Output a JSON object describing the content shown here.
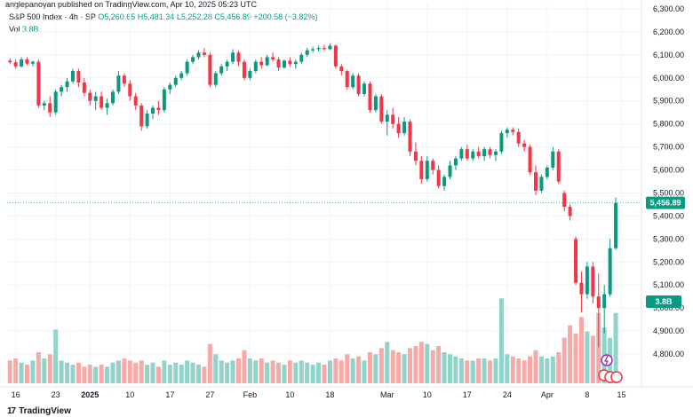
{
  "header": {
    "attribution": "anglepanoyan published on TradingView.com, Apr 10, 2025 05:23 UTC",
    "symbol": "S&P 500 Index · 4h · SP",
    "ohlc": "O5,260.65 H5,481.34 L5,252.28 C5,456.89 +200.58 (+3.82%)",
    "vol_label": "Vol",
    "vol_value": "3.8B"
  },
  "brand": {
    "logo": "17",
    "name": "TradingView"
  },
  "colors": {
    "up": "#089981",
    "down": "#f23645",
    "up_vol": "#8fd3cb",
    "down_vol": "#f7a9a7",
    "grid": "#f0f3fa"
  },
  "chart_data": {
    "type": "candlestick",
    "ylim": [
      4750,
      6300
    ],
    "y_ticks": [
      {
        "value": 6300,
        "label": "6,300.00"
      },
      {
        "value": 6200,
        "label": "6,200.00"
      },
      {
        "value": 6100,
        "label": "6,100.00"
      },
      {
        "value": 6000,
        "label": "6,000.00"
      },
      {
        "value": 5900,
        "label": "5,900.00"
      },
      {
        "value": 5800,
        "label": "5,800.00"
      },
      {
        "value": 5700,
        "label": "5,700.00"
      },
      {
        "value": 5600,
        "label": "5,600.00"
      },
      {
        "value": 5500,
        "label": "5,500.00"
      },
      {
        "value": 5400,
        "label": "5,400.00"
      },
      {
        "value": 5300,
        "label": "5,300.00"
      },
      {
        "value": 5200,
        "label": "5,200.00"
      },
      {
        "value": 5100,
        "label": "5,100.00"
      },
      {
        "value": 5000,
        "label": "5,000.00"
      },
      {
        "value": 4900,
        "label": "4,900.00"
      },
      {
        "value": 4800,
        "label": "4,800.00"
      }
    ],
    "x_ticks": [
      {
        "label": "16",
        "index": 1
      },
      {
        "label": "23",
        "index": 8
      },
      {
        "label": "2025",
        "index": 14,
        "bold": true
      },
      {
        "label": "10",
        "index": 21
      },
      {
        "label": "17",
        "index": 28
      },
      {
        "label": "27",
        "index": 35
      },
      {
        "label": "Feb",
        "index": 42
      },
      {
        "label": "10",
        "index": 49
      },
      {
        "label": "18",
        "index": 56
      },
      {
        "label": "Mar",
        "index": 66
      },
      {
        "label": "10",
        "index": 73
      },
      {
        "label": "17",
        "index": 80
      },
      {
        "label": "24",
        "index": 87
      },
      {
        "label": "Apr",
        "index": 94
      },
      {
        "label": "8",
        "index": 101
      },
      {
        "label": "15",
        "index": 107
      }
    ],
    "price_label": "5,456.89",
    "vol_label": "3.8B",
    "last_price": 5456.89,
    "candles": [
      {
        "o": 6075,
        "h": 6085,
        "l": 6060,
        "c": 6068,
        "v": 0.55
      },
      {
        "o": 6068,
        "h": 6080,
        "l": 6040,
        "c": 6050,
        "v": 0.6
      },
      {
        "o": 6050,
        "h": 6090,
        "l": 6045,
        "c": 6080,
        "v": 0.5
      },
      {
        "o": 6080,
        "h": 6090,
        "l": 6055,
        "c": 6062,
        "v": 0.45
      },
      {
        "o": 6062,
        "h": 6075,
        "l": 6050,
        "c": 6070,
        "v": 0.55
      },
      {
        "o": 6070,
        "h": 6080,
        "l": 5870,
        "c": 5880,
        "v": 0.75
      },
      {
        "o": 5880,
        "h": 5900,
        "l": 5860,
        "c": 5890,
        "v": 0.6
      },
      {
        "o": 5890,
        "h": 5920,
        "l": 5830,
        "c": 5850,
        "v": 0.7
      },
      {
        "o": 5850,
        "h": 5950,
        "l": 5840,
        "c": 5940,
        "v": 1.3
      },
      {
        "o": 5940,
        "h": 5970,
        "l": 5920,
        "c": 5960,
        "v": 0.55
      },
      {
        "o": 5960,
        "h": 6000,
        "l": 5940,
        "c": 5985,
        "v": 0.5
      },
      {
        "o": 5985,
        "h": 6040,
        "l": 5975,
        "c": 6030,
        "v": 0.45
      },
      {
        "o": 6030,
        "h": 6040,
        "l": 5960,
        "c": 5980,
        "v": 0.5
      },
      {
        "o": 5980,
        "h": 6000,
        "l": 5920,
        "c": 5935,
        "v": 0.4
      },
      {
        "o": 5935,
        "h": 5950,
        "l": 5880,
        "c": 5900,
        "v": 0.45
      },
      {
        "o": 5900,
        "h": 5940,
        "l": 5860,
        "c": 5920,
        "v": 0.4
      },
      {
        "o": 5920,
        "h": 5940,
        "l": 5860,
        "c": 5870,
        "v": 0.45
      },
      {
        "o": 5870,
        "h": 5910,
        "l": 5840,
        "c": 5890,
        "v": 0.4
      },
      {
        "o": 5890,
        "h": 5950,
        "l": 5880,
        "c": 5940,
        "v": 0.5
      },
      {
        "o": 5940,
        "h": 6030,
        "l": 5930,
        "c": 6010,
        "v": 0.55
      },
      {
        "o": 6010,
        "h": 6020,
        "l": 5960,
        "c": 5975,
        "v": 0.6
      },
      {
        "o": 5975,
        "h": 5990,
        "l": 5900,
        "c": 5920,
        "v": 0.55
      },
      {
        "o": 5920,
        "h": 5935,
        "l": 5860,
        "c": 5880,
        "v": 0.5
      },
      {
        "o": 5880,
        "h": 5890,
        "l": 5770,
        "c": 5790,
        "v": 0.55
      },
      {
        "o": 5790,
        "h": 5860,
        "l": 5780,
        "c": 5845,
        "v": 0.45
      },
      {
        "o": 5845,
        "h": 5880,
        "l": 5820,
        "c": 5870,
        "v": 0.5
      },
      {
        "o": 5870,
        "h": 5900,
        "l": 5840,
        "c": 5860,
        "v": 0.4
      },
      {
        "o": 5860,
        "h": 5960,
        "l": 5850,
        "c": 5950,
        "v": 0.55
      },
      {
        "o": 5950,
        "h": 5980,
        "l": 5930,
        "c": 5970,
        "v": 0.45
      },
      {
        "o": 5970,
        "h": 6010,
        "l": 5960,
        "c": 6000,
        "v": 0.5
      },
      {
        "o": 6000,
        "h": 6030,
        "l": 5990,
        "c": 6020,
        "v": 0.45
      },
      {
        "o": 6020,
        "h": 6080,
        "l": 6010,
        "c": 6070,
        "v": 0.55
      },
      {
        "o": 6070,
        "h": 6100,
        "l": 6060,
        "c": 6090,
        "v": 0.5
      },
      {
        "o": 6090,
        "h": 6120,
        "l": 6080,
        "c": 6110,
        "v": 0.45
      },
      {
        "o": 6110,
        "h": 6130,
        "l": 6090,
        "c": 6100,
        "v": 0.4
      },
      {
        "o": 6100,
        "h": 6110,
        "l": 5960,
        "c": 5970,
        "v": 0.95
      },
      {
        "o": 5970,
        "h": 6030,
        "l": 5960,
        "c": 6020,
        "v": 0.7
      },
      {
        "o": 6020,
        "h": 6060,
        "l": 6010,
        "c": 6050,
        "v": 0.55
      },
      {
        "o": 6050,
        "h": 6080,
        "l": 6030,
        "c": 6070,
        "v": 0.5
      },
      {
        "o": 6070,
        "h": 6125,
        "l": 6060,
        "c": 6110,
        "v": 0.55
      },
      {
        "o": 6110,
        "h": 6120,
        "l": 6050,
        "c": 6070,
        "v": 0.6
      },
      {
        "o": 6070,
        "h": 6080,
        "l": 5990,
        "c": 6000,
        "v": 0.8
      },
      {
        "o": 6000,
        "h": 6040,
        "l": 5990,
        "c": 6030,
        "v": 0.6
      },
      {
        "o": 6030,
        "h": 6080,
        "l": 6020,
        "c": 6070,
        "v": 0.55
      },
      {
        "o": 6070,
        "h": 6090,
        "l": 6040,
        "c": 6055,
        "v": 0.6
      },
      {
        "o": 6055,
        "h": 6100,
        "l": 6050,
        "c": 6090,
        "v": 0.5
      },
      {
        "o": 6090,
        "h": 6110,
        "l": 6070,
        "c": 6080,
        "v": 0.55
      },
      {
        "o": 6080,
        "h": 6090,
        "l": 6030,
        "c": 6045,
        "v": 0.5
      },
      {
        "o": 6045,
        "h": 6080,
        "l": 6040,
        "c": 6075,
        "v": 0.45
      },
      {
        "o": 6075,
        "h": 6090,
        "l": 6050,
        "c": 6060,
        "v": 0.55
      },
      {
        "o": 6060,
        "h": 6080,
        "l": 6040,
        "c": 6070,
        "v": 0.5
      },
      {
        "o": 6070,
        "h": 6110,
        "l": 6060,
        "c": 6100,
        "v": 0.55
      },
      {
        "o": 6100,
        "h": 6130,
        "l": 6090,
        "c": 6120,
        "v": 0.5
      },
      {
        "o": 6120,
        "h": 6135,
        "l": 6110,
        "c": 6125,
        "v": 0.45
      },
      {
        "o": 6125,
        "h": 6140,
        "l": 6115,
        "c": 6130,
        "v": 0.5
      },
      {
        "o": 6130,
        "h": 6145,
        "l": 6120,
        "c": 6125,
        "v": 0.45
      },
      {
        "o": 6125,
        "h": 6150,
        "l": 6120,
        "c": 6140,
        "v": 0.55
      },
      {
        "o": 6140,
        "h": 6145,
        "l": 6040,
        "c": 6050,
        "v": 0.6
      },
      {
        "o": 6050,
        "h": 6060,
        "l": 6010,
        "c": 6030,
        "v": 0.55
      },
      {
        "o": 6030,
        "h": 6035,
        "l": 5950,
        "c": 5960,
        "v": 0.7
      },
      {
        "o": 5960,
        "h": 6020,
        "l": 5950,
        "c": 6010,
        "v": 0.6
      },
      {
        "o": 6010,
        "h": 6020,
        "l": 5920,
        "c": 5930,
        "v": 0.65
      },
      {
        "o": 5930,
        "h": 5985,
        "l": 5920,
        "c": 5975,
        "v": 0.55
      },
      {
        "o": 5975,
        "h": 5985,
        "l": 5850,
        "c": 5860,
        "v": 0.75
      },
      {
        "o": 5860,
        "h": 5930,
        "l": 5850,
        "c": 5920,
        "v": 0.7
      },
      {
        "o": 5920,
        "h": 5930,
        "l": 5800,
        "c": 5810,
        "v": 0.85
      },
      {
        "o": 5810,
        "h": 5860,
        "l": 5750,
        "c": 5840,
        "v": 1.0
      },
      {
        "o": 5840,
        "h": 5870,
        "l": 5780,
        "c": 5800,
        "v": 0.8
      },
      {
        "o": 5800,
        "h": 5830,
        "l": 5740,
        "c": 5760,
        "v": 0.75
      },
      {
        "o": 5760,
        "h": 5830,
        "l": 5750,
        "c": 5810,
        "v": 0.7
      },
      {
        "o": 5810,
        "h": 5820,
        "l": 5660,
        "c": 5680,
        "v": 0.85
      },
      {
        "o": 5680,
        "h": 5720,
        "l": 5620,
        "c": 5640,
        "v": 0.9
      },
      {
        "o": 5640,
        "h": 5660,
        "l": 5540,
        "c": 5560,
        "v": 1.0
      },
      {
        "o": 5560,
        "h": 5660,
        "l": 5550,
        "c": 5640,
        "v": 0.95
      },
      {
        "o": 5640,
        "h": 5650,
        "l": 5580,
        "c": 5600,
        "v": 0.8
      },
      {
        "o": 5600,
        "h": 5620,
        "l": 5520,
        "c": 5530,
        "v": 0.9
      },
      {
        "o": 5530,
        "h": 5580,
        "l": 5510,
        "c": 5570,
        "v": 0.75
      },
      {
        "o": 5570,
        "h": 5640,
        "l": 5560,
        "c": 5620,
        "v": 0.7
      },
      {
        "o": 5620,
        "h": 5660,
        "l": 5600,
        "c": 5650,
        "v": 0.65
      },
      {
        "o": 5650,
        "h": 5700,
        "l": 5640,
        "c": 5690,
        "v": 0.6
      },
      {
        "o": 5690,
        "h": 5710,
        "l": 5640,
        "c": 5650,
        "v": 0.55
      },
      {
        "o": 5650,
        "h": 5690,
        "l": 5640,
        "c": 5680,
        "v": 0.55
      },
      {
        "o": 5680,
        "h": 5700,
        "l": 5650,
        "c": 5660,
        "v": 0.6
      },
      {
        "o": 5660,
        "h": 5700,
        "l": 5640,
        "c": 5690,
        "v": 0.6
      },
      {
        "o": 5690,
        "h": 5700,
        "l": 5650,
        "c": 5665,
        "v": 0.55
      },
      {
        "o": 5665,
        "h": 5690,
        "l": 5640,
        "c": 5680,
        "v": 0.6
      },
      {
        "o": 5680,
        "h": 5770,
        "l": 5670,
        "c": 5760,
        "v": 2.05
      },
      {
        "o": 5760,
        "h": 5785,
        "l": 5740,
        "c": 5775,
        "v": 0.7
      },
      {
        "o": 5775,
        "h": 5785,
        "l": 5750,
        "c": 5765,
        "v": 0.65
      },
      {
        "o": 5765,
        "h": 5780,
        "l": 5700,
        "c": 5715,
        "v": 0.6
      },
      {
        "o": 5715,
        "h": 5730,
        "l": 5680,
        "c": 5700,
        "v": 0.55
      },
      {
        "o": 5700,
        "h": 5710,
        "l": 5580,
        "c": 5590,
        "v": 0.65
      },
      {
        "o": 5590,
        "h": 5620,
        "l": 5490,
        "c": 5510,
        "v": 0.8
      },
      {
        "o": 5510,
        "h": 5580,
        "l": 5500,
        "c": 5570,
        "v": 0.65
      },
      {
        "o": 5570,
        "h": 5620,
        "l": 5560,
        "c": 5610,
        "v": 0.6
      },
      {
        "o": 5610,
        "h": 5700,
        "l": 5600,
        "c": 5680,
        "v": 0.65
      },
      {
        "o": 5680,
        "h": 5690,
        "l": 5540,
        "c": 5550,
        "v": 0.75
      },
      {
        "o": 5500,
        "h": 5510,
        "l": 5420,
        "c": 5440,
        "v": 1.1
      },
      {
        "o": 5440,
        "h": 5450,
        "l": 5380,
        "c": 5400,
        "v": 1.4
      },
      {
        "o": 5300,
        "h": 5310,
        "l": 5100,
        "c": 5110,
        "v": 1.2
      },
      {
        "o": 5110,
        "h": 5160,
        "l": 4980,
        "c": 5060,
        "v": 1.6
      },
      {
        "o": 5060,
        "h": 5200,
        "l": 5040,
        "c": 5180,
        "v": 1.25
      },
      {
        "o": 5180,
        "h": 5200,
        "l": 5020,
        "c": 5050,
        "v": 1.15
      },
      {
        "o": 5050,
        "h": 5150,
        "l": 4830,
        "c": 5000,
        "v": 1.7
      },
      {
        "o": 5000,
        "h": 5100,
        "l": 4890,
        "c": 5060,
        "v": 1.35
      },
      {
        "o": 5060,
        "h": 5300,
        "l": 5050,
        "c": 5260,
        "v": 1.1
      },
      {
        "o": 5260,
        "h": 5481,
        "l": 5252,
        "c": 5457,
        "v": 1.7
      }
    ]
  }
}
